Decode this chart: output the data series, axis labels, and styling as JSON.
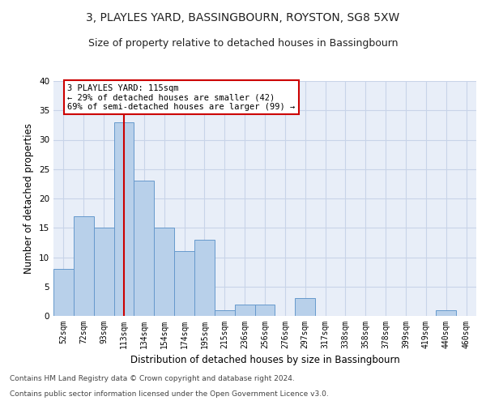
{
  "title": "3, PLAYLES YARD, BASSINGBOURN, ROYSTON, SG8 5XW",
  "subtitle": "Size of property relative to detached houses in Bassingbourn",
  "xlabel": "Distribution of detached houses by size in Bassingbourn",
  "ylabel": "Number of detached properties",
  "footer1": "Contains HM Land Registry data © Crown copyright and database right 2024.",
  "footer2": "Contains public sector information licensed under the Open Government Licence v3.0.",
  "categories": [
    "52sqm",
    "72sqm",
    "93sqm",
    "113sqm",
    "134sqm",
    "154sqm",
    "174sqm",
    "195sqm",
    "215sqm",
    "236sqm",
    "256sqm",
    "276sqm",
    "297sqm",
    "317sqm",
    "338sqm",
    "358sqm",
    "378sqm",
    "399sqm",
    "419sqm",
    "440sqm",
    "460sqm"
  ],
  "bar_values": [
    8,
    17,
    15,
    33,
    23,
    15,
    11,
    13,
    1,
    2,
    2,
    0,
    3,
    0,
    0,
    0,
    0,
    0,
    0,
    1,
    0
  ],
  "bar_color": "#b8d0ea",
  "bar_edge_color": "#6699cc",
  "annotation_line1": "3 PLAYLES YARD: 115sqm",
  "annotation_line2": "← 29% of detached houses are smaller (42)",
  "annotation_line3": "69% of semi-detached houses are larger (99) →",
  "annotation_box_color": "#ffffff",
  "annotation_box_edge_color": "#cc0000",
  "vline_color": "#cc0000",
  "vline_x_idx": 3,
  "ylim": [
    0,
    40
  ],
  "yticks": [
    0,
    5,
    10,
    15,
    20,
    25,
    30,
    35,
    40
  ],
  "grid_color": "#c8d4e8",
  "bg_color": "#e8eef8",
  "title_fontsize": 10,
  "subtitle_fontsize": 9,
  "ylabel_fontsize": 8.5,
  "xlabel_fontsize": 8.5,
  "tick_fontsize": 7,
  "footer_fontsize": 6.5,
  "ann_fontsize": 7.5
}
